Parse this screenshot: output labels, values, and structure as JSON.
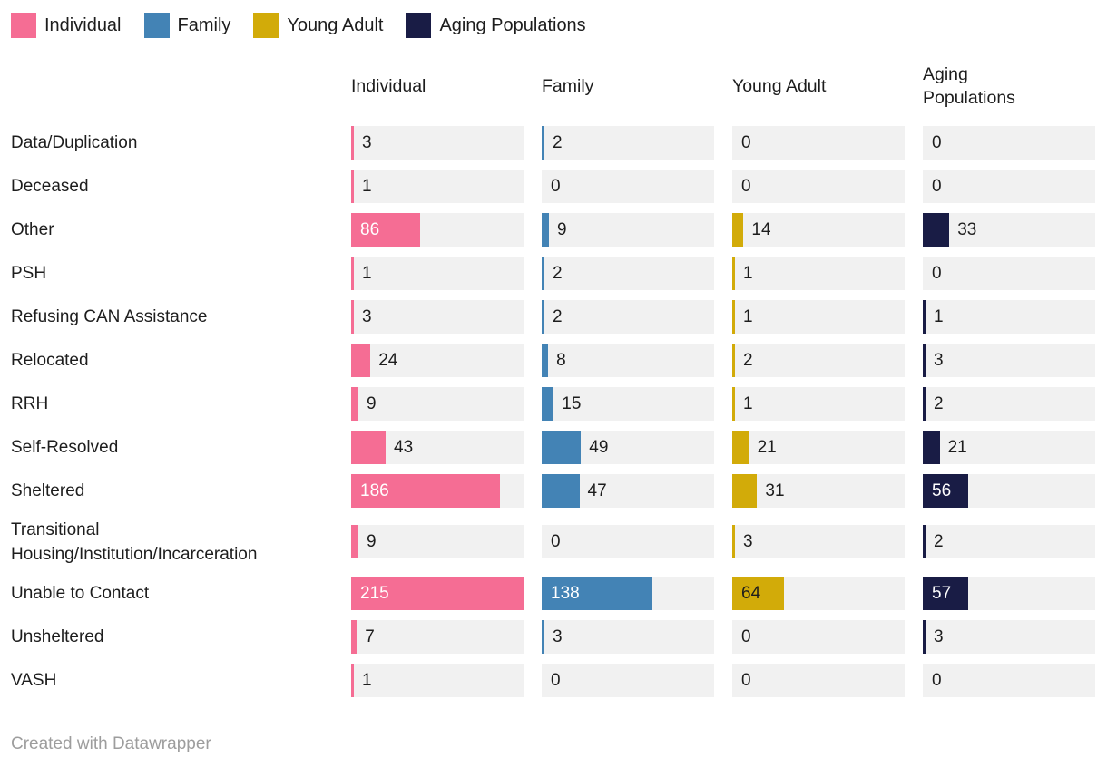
{
  "colors": {
    "individual": "#f56d94",
    "family": "#4383b5",
    "young_adult": "#d2ab09",
    "aging_populations": "#191c45",
    "bar_track": "#f1f1f1",
    "text": "#1d1d1d",
    "value_label_on_dark_bar": "#ffffff",
    "footer_text": "#9d9d9d"
  },
  "chart_data": {
    "type": "bar",
    "orientation": "horizontal",
    "legend_position": "top",
    "grid": false,
    "value_labels": true,
    "max_value": 215,
    "categories": [
      "Data/Duplication",
      "Deceased",
      "Other",
      "PSH",
      "Refusing CAN Assistance",
      "Relocated",
      "RRH",
      "Self-Resolved",
      "Sheltered",
      "Transitional Housing/Institution/Incarceration",
      "Unable to Contact",
      "Unsheltered",
      "VASH"
    ],
    "series": [
      {
        "name": "Individual",
        "color": "#f56d94",
        "label_inside_dark": false,
        "values": [
          3,
          1,
          86,
          1,
          3,
          24,
          9,
          43,
          186,
          9,
          215,
          7,
          1
        ]
      },
      {
        "name": "Family",
        "color": "#4383b5",
        "label_inside_dark": false,
        "values": [
          2,
          0,
          9,
          2,
          2,
          8,
          15,
          49,
          47,
          0,
          138,
          3,
          0
        ]
      },
      {
        "name": "Young Adult",
        "color": "#d2ab09",
        "label_inside_dark": true,
        "values": [
          0,
          0,
          14,
          1,
          1,
          2,
          1,
          21,
          31,
          3,
          64,
          0,
          0
        ]
      },
      {
        "name": "Aging Populations",
        "color": "#191c45",
        "label_inside_dark": false,
        "values": [
          0,
          0,
          33,
          0,
          1,
          3,
          2,
          21,
          56,
          2,
          57,
          3,
          0
        ]
      }
    ]
  },
  "footer": {
    "credit": "Created with Datawrapper"
  }
}
